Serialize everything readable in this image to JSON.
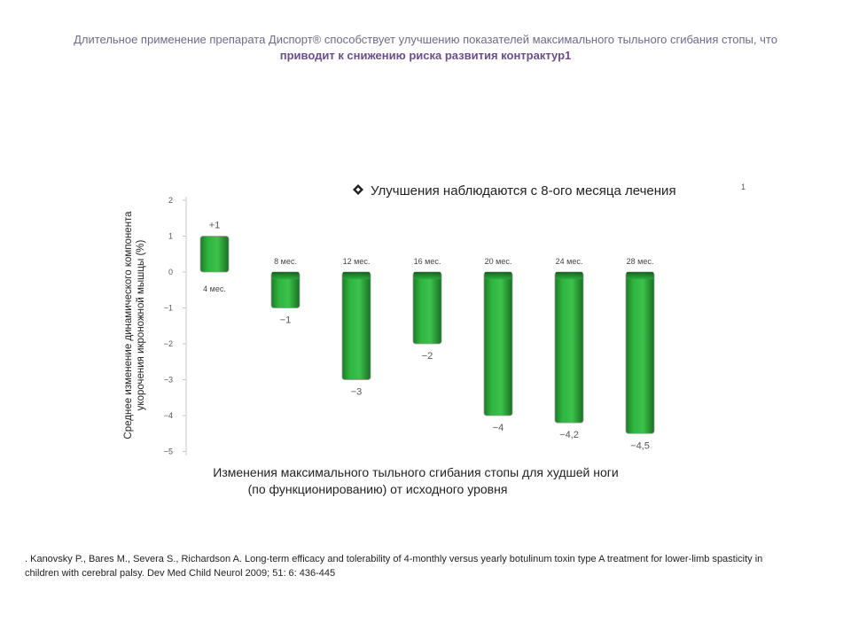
{
  "header": {
    "line1": "Длительное применение препарата Диспорт® способствует улучшению показателей максимального тыльного сгибания стопы, что",
    "line2": "приводит к снижению риска развития контрактур1"
  },
  "reference": {
    "text": ". Kanovsky P., Bares M., Severa S., Richardson A. Long-term efficacy and tolerability of 4-monthly versus yearly botulinum toxin type A treatment for lower-limb spasticity in children with cerebral palsy. Dev Med Child Neurol 2009; 51: 6: 436-445"
  },
  "chart_data": {
    "type": "bar",
    "note": "Улучшения наблюдаются с 8-ого месяца лечения",
    "note_marker": "1",
    "note_icon": "diamond-bullet-icon",
    "categories": [
      "4 мес.",
      "8 мес.",
      "12 мес.",
      "16 мес.",
      "20 мес.",
      "24 мес.",
      "28 мес."
    ],
    "values": [
      1,
      -1,
      -3,
      -2,
      -4,
      -4.2,
      -4.5
    ],
    "value_labels": [
      "+1",
      "−1",
      "−3",
      "−2",
      "−4",
      "−4,2",
      "−4,5"
    ],
    "ylabel_line1": "Среднее изменение динамического компонента",
    "ylabel_line2": "укорочения икроножной мышцы (%)",
    "xlabel_line1": "Изменения максимального тыльного сгибания стопы для худшей ноги",
    "xlabel_line2": "(по функционированию) от исходного уровня",
    "yticks": [
      "2",
      "1",
      "0",
      "−1",
      "−2",
      "−3",
      "−4",
      "−5"
    ],
    "ytick_values": [
      2,
      1,
      0,
      -1,
      -2,
      -3,
      -4,
      -5
    ],
    "ylim": [
      -5,
      2
    ],
    "grid": false,
    "bar_color": "#2aa83a"
  }
}
